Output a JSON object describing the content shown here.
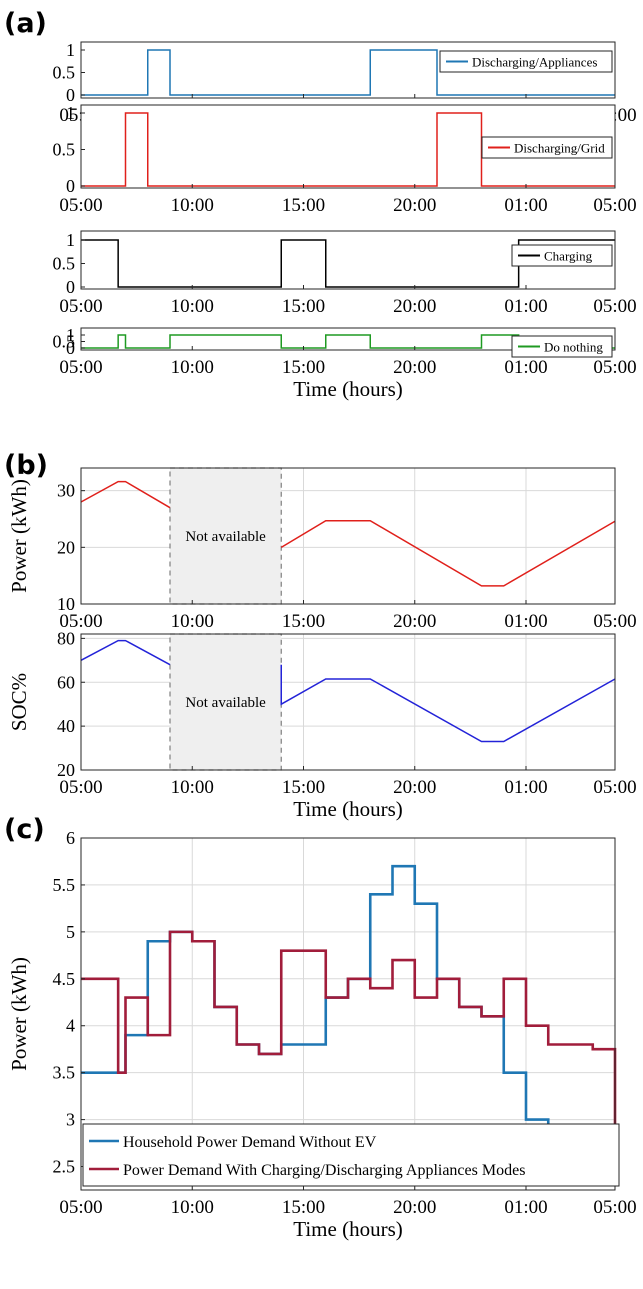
{
  "panel_labels": [
    "(a)",
    "(b)",
    "(c)"
  ],
  "xticks": [
    "05:00",
    "10:00",
    "15:00",
    "20:00",
    "01:00",
    "05:00"
  ],
  "xticks_hours": [
    5,
    10,
    15,
    20,
    25,
    29
  ],
  "xlabel": "Time (hours)",
  "not_available_label": "Not available",
  "chart_data": [
    {
      "type": "line",
      "panel": "(a)",
      "title": "",
      "xlabel": "",
      "ylabel": "",
      "xlim": [
        5,
        29
      ],
      "ylim": [
        0,
        1
      ],
      "yticks": [
        0,
        0.5,
        1
      ],
      "ytick_labels": [
        "0",
        "0.5",
        "1"
      ],
      "grid": false,
      "legend_position": "top-right",
      "color": "#1f77b4",
      "series": [
        {
          "name": "Discharging/Appliances",
          "x": [
            5,
            8,
            8,
            9,
            9,
            18,
            18,
            21,
            21,
            29
          ],
          "values": [
            0,
            0,
            1,
            1,
            0,
            0,
            1,
            1,
            0,
            0
          ]
        }
      ]
    },
    {
      "type": "line",
      "panel": "(a)",
      "title": "",
      "xlabel": "",
      "ylabel": "",
      "xlim": [
        5,
        29
      ],
      "ylim": [
        0,
        1
      ],
      "yticks": [
        0,
        0.5,
        1
      ],
      "ytick_labels": [
        "0",
        "0.5",
        "1"
      ],
      "grid": false,
      "legend_position": "top-right",
      "color": "#e0201b",
      "series": [
        {
          "name": "Discharging/Grid",
          "x": [
            5,
            7,
            7,
            8,
            8,
            21,
            21,
            23,
            23,
            29
          ],
          "values": [
            0,
            0,
            1,
            1,
            0,
            0,
            1,
            1,
            0,
            0
          ]
        }
      ]
    },
    {
      "type": "line",
      "panel": "(a)",
      "title": "",
      "xlabel": "",
      "ylabel": "",
      "xlim": [
        5,
        29
      ],
      "ylim": [
        0,
        1
      ],
      "yticks": [
        0,
        0.5,
        1
      ],
      "ytick_labels": [
        "0",
        "0.5",
        "1"
      ],
      "grid": false,
      "legend_position": "top-right",
      "color": "#000000",
      "series": [
        {
          "name": "Charging",
          "x": [
            5,
            6.67,
            6.67,
            14,
            14,
            16,
            16,
            24.67,
            24.67,
            29
          ],
          "values": [
            1,
            1,
            0,
            0,
            1,
            1,
            0,
            0,
            1,
            1
          ]
        }
      ]
    },
    {
      "type": "line",
      "panel": "(a)",
      "title": "",
      "xlabel": "Time (hours)",
      "ylabel": "",
      "xlim": [
        5,
        29
      ],
      "ylim": [
        0,
        1
      ],
      "yticks": [
        0,
        0.5,
        1
      ],
      "ytick_labels": [
        "0",
        "0.5",
        "1"
      ],
      "grid": false,
      "legend_position": "top-right",
      "color": "#1f9a22",
      "series": [
        {
          "name": "Do nothing",
          "x": [
            5,
            6.67,
            6.67,
            7,
            7,
            9,
            9,
            14,
            14,
            16,
            16,
            18,
            18,
            23,
            23,
            24.67,
            24.67,
            29
          ],
          "values": [
            0,
            0,
            1,
            1,
            0,
            0,
            1,
            1,
            0,
            0,
            1,
            1,
            0,
            0,
            1,
            1,
            0,
            0
          ]
        }
      ]
    },
    {
      "type": "line",
      "panel": "(b)",
      "title": "",
      "xlabel": "Time (hours)",
      "ylabel": "Power (kWh)",
      "xlim": [
        5,
        29
      ],
      "ylim": [
        10,
        34
      ],
      "yticks": [
        10,
        20,
        30
      ],
      "ytick_labels": [
        "10",
        "20",
        "30"
      ],
      "grid": true,
      "color": "#e0201b",
      "unavailable_x": [
        9,
        14
      ],
      "series": [
        {
          "name": "",
          "x": [
            5,
            6.67,
            7,
            9,
            14,
            16,
            18,
            23,
            24,
            29
          ],
          "values": [
            28,
            31.6,
            31.6,
            27,
            20,
            24.7,
            24.7,
            13.2,
            13.2,
            24.6
          ]
        }
      ]
    },
    {
      "type": "line",
      "panel": "(b)",
      "title": "",
      "xlabel": "Time (hours)",
      "ylabel": "SOC%",
      "xlim": [
        5,
        29
      ],
      "ylim": [
        20,
        82
      ],
      "yticks": [
        20,
        40,
        60,
        80
      ],
      "ytick_labels": [
        "20",
        "40",
        "60",
        "80"
      ],
      "grid": true,
      "color": "#2323d8",
      "unavailable_x": [
        9,
        14
      ],
      "series": [
        {
          "name": "",
          "x": [
            5,
            6.67,
            7,
            9,
            14,
            14,
            16,
            18,
            23,
            24,
            29
          ],
          "values": [
            70,
            79,
            79,
            68,
            68,
            50,
            61.5,
            61.5,
            33,
            33,
            61.5
          ]
        }
      ]
    },
    {
      "type": "line",
      "panel": "(c)",
      "title": "",
      "xlabel": "Time (hours)",
      "ylabel": "Power (kWh)",
      "xlim": [
        5,
        29
      ],
      "ylim": [
        2.25,
        6
      ],
      "yticks": [
        2.5,
        3,
        3.5,
        4,
        4.5,
        5,
        5.5,
        6
      ],
      "ytick_labels": [
        "2.5",
        "3",
        "3.5",
        "4",
        "4.5",
        "5",
        "5.5",
        "6"
      ],
      "grid": true,
      "legend_position": "bottom-left",
      "series": [
        {
          "name": "Household Power Demand Without EV",
          "color": "#1f77b4",
          "x": [
            5,
            6,
            7,
            8,
            9,
            10,
            11,
            12,
            13,
            14,
            15,
            16,
            17,
            18,
            19,
            20,
            21,
            22,
            23,
            24,
            25,
            26,
            27,
            28,
            29
          ],
          "values": [
            3.5,
            3.5,
            3.9,
            4.9,
            5.0,
            4.9,
            4.2,
            3.8,
            3.7,
            3.8,
            3.8,
            4.3,
            4.5,
            5.4,
            5.7,
            5.3,
            4.5,
            4.2,
            4.1,
            3.5,
            3.0,
            2.8,
            2.8,
            2.75,
            2.75
          ]
        },
        {
          "name": "Power Demand With Charging/Discharging Appliances Modes",
          "color": "#a11d3b",
          "x": [
            5,
            6.67,
            7,
            8,
            9,
            10,
            11,
            12,
            13,
            14,
            16,
            17,
            18,
            19,
            20,
            21,
            22,
            23,
            24,
            25,
            26,
            27,
            28,
            29,
            29
          ],
          "values": [
            4.5,
            3.5,
            4.3,
            3.9,
            5.0,
            4.9,
            4.2,
            3.8,
            3.7,
            4.8,
            4.3,
            4.5,
            4.4,
            4.7,
            4.3,
            4.5,
            4.2,
            4.1,
            4.5,
            4.0,
            3.8,
            3.8,
            3.75,
            3.75,
            2.75
          ]
        }
      ]
    }
  ]
}
